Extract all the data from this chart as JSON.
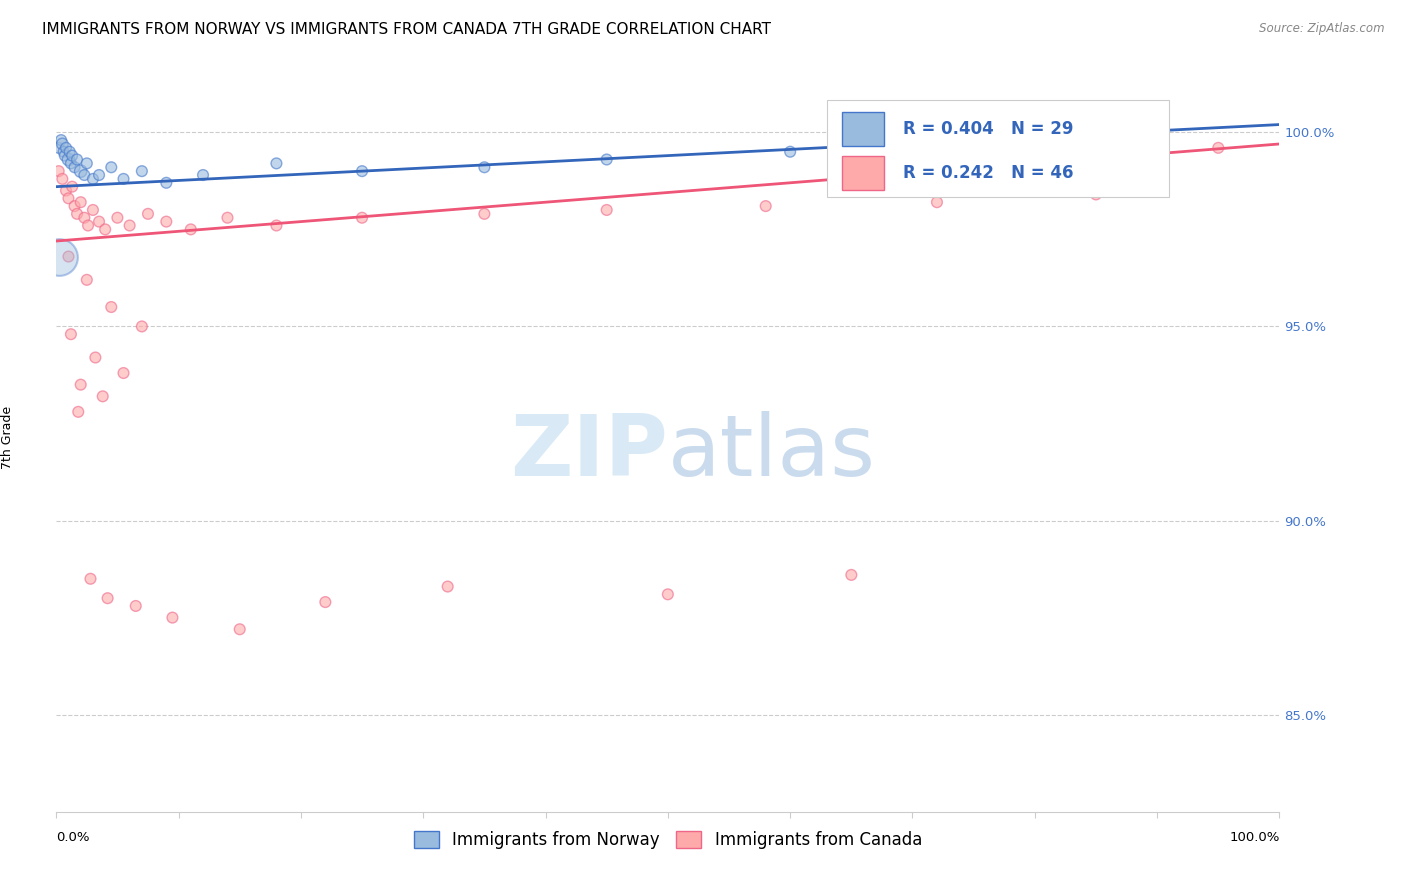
{
  "title": "IMMIGRANTS FROM NORWAY VS IMMIGRANTS FROM CANADA 7TH GRADE CORRELATION CHART",
  "source": "Source: ZipAtlas.com",
  "ylabel": "7th Grade",
  "xmin": 0.0,
  "xmax": 100.0,
  "ymin": 82.5,
  "ymax": 101.8,
  "yticks": [
    85.0,
    90.0,
    95.0,
    100.0
  ],
  "ytick_labels": [
    "85.0%",
    "90.0%",
    "95.0%",
    "100.0%"
  ],
  "norway_R": 0.404,
  "norway_N": 29,
  "canada_R": 0.242,
  "canada_N": 46,
  "norway_color": "#99BBDD",
  "canada_color": "#FFAAAA",
  "norway_edge_color": "#4477CC",
  "canada_edge_color": "#EE6688",
  "norway_line_color": "#3366BB",
  "canada_line_color": "#EE5577",
  "legend_norway": "Immigrants from Norway",
  "legend_canada": "Immigrants from Canada",
  "norway_scatter_x": [
    0.2,
    0.4,
    0.5,
    0.6,
    0.7,
    0.8,
    1.0,
    1.1,
    1.2,
    1.3,
    1.5,
    1.7,
    2.0,
    2.3,
    2.5,
    3.0,
    3.5,
    4.5,
    5.5,
    7.0,
    9.0,
    12.0,
    18.0,
    25.0,
    35.0,
    45.0,
    60.0,
    75.0,
    90.0
  ],
  "norway_scatter_y": [
    99.6,
    99.8,
    99.7,
    99.5,
    99.4,
    99.6,
    99.3,
    99.5,
    99.2,
    99.4,
    99.1,
    99.3,
    99.0,
    98.9,
    99.2,
    98.8,
    98.9,
    99.1,
    98.8,
    99.0,
    98.7,
    98.9,
    99.2,
    99.0,
    99.1,
    99.3,
    99.5,
    99.6,
    99.8
  ],
  "norway_sizes": [
    60,
    60,
    70,
    60,
    60,
    60,
    80,
    60,
    60,
    60,
    60,
    60,
    80,
    60,
    60,
    60,
    60,
    60,
    60,
    60,
    60,
    60,
    60,
    60,
    60,
    60,
    60,
    60,
    60
  ],
  "canada_scatter_x": [
    0.2,
    0.5,
    0.8,
    1.0,
    1.3,
    1.5,
    1.7,
    2.0,
    2.3,
    2.6,
    3.0,
    3.5,
    4.0,
    5.0,
    6.0,
    7.5,
    9.0,
    11.0,
    14.0,
    18.0,
    25.0,
    35.0,
    45.0,
    58.0,
    72.0,
    85.0,
    95.0,
    1.0,
    2.5,
    4.5,
    7.0,
    1.2,
    3.2,
    5.5,
    2.0,
    3.8,
    1.8,
    2.8,
    4.2,
    6.5,
    9.5,
    15.0,
    22.0,
    32.0,
    50.0,
    65.0
  ],
  "canada_scatter_y": [
    99.0,
    98.8,
    98.5,
    98.3,
    98.6,
    98.1,
    97.9,
    98.2,
    97.8,
    97.6,
    98.0,
    97.7,
    97.5,
    97.8,
    97.6,
    97.9,
    97.7,
    97.5,
    97.8,
    97.6,
    97.8,
    97.9,
    98.0,
    98.1,
    98.2,
    98.4,
    99.6,
    96.8,
    96.2,
    95.5,
    95.0,
    94.8,
    94.2,
    93.8,
    93.5,
    93.2,
    92.8,
    88.5,
    88.0,
    87.8,
    87.5,
    87.2,
    87.9,
    88.3,
    88.1,
    88.6
  ],
  "canada_sizes": [
    60,
    60,
    60,
    60,
    60,
    60,
    60,
    60,
    60,
    60,
    60,
    60,
    60,
    60,
    60,
    60,
    60,
    60,
    60,
    60,
    60,
    60,
    60,
    60,
    60,
    60,
    60,
    60,
    60,
    60,
    60,
    60,
    60,
    60,
    60,
    60,
    60,
    60,
    60,
    60,
    60,
    60,
    60,
    60,
    60,
    60
  ],
  "big_blue_x": 0.2,
  "big_blue_y": 96.8,
  "big_blue_size": 700,
  "norway_trend_y0": 98.6,
  "norway_trend_y1": 100.2,
  "canada_trend_y0": 97.2,
  "canada_trend_y1": 99.7,
  "background_color": "#FFFFFF",
  "grid_color": "#CCCCCC",
  "title_fontsize": 11,
  "source_fontsize": 8.5,
  "axis_label_fontsize": 9,
  "tick_fontsize": 9.5,
  "legend_fontsize": 12,
  "watermark_color_zip": "#D5E8F5",
  "watermark_color_atlas": "#C5D8EC"
}
